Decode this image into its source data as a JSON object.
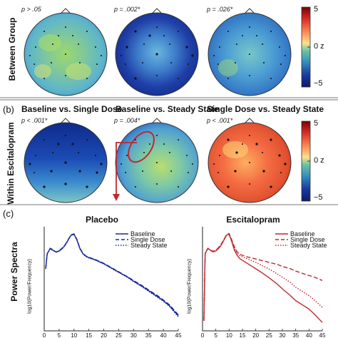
{
  "panels": {
    "a": {
      "row_label": "Between Group",
      "maps": [
        {
          "p": "p > .05",
          "title": ""
        },
        {
          "p": "p = .002*",
          "title": ""
        },
        {
          "p": "p = .026*",
          "title": ""
        }
      ]
    },
    "b": {
      "letter": "(b)",
      "row_label": "Within Escitalopram",
      "maps": [
        {
          "p": "p < .001*",
          "title": "Baseline vs. Single Dose"
        },
        {
          "p": "p = .004*",
          "title": "Baseline vs. Steady State"
        },
        {
          "p": "p < .001*",
          "title": "Single Dose vs. Steady State"
        }
      ]
    },
    "c": {
      "letter": "(c)",
      "row_label": "Power Spectra"
    }
  },
  "colorbar": {
    "ticks": [
      "5",
      "0 z",
      "−5"
    ],
    "colors": [
      "#7a0000",
      "#d73027",
      "#fc8d59",
      "#fee08b",
      "#66c2a5",
      "#3288bd",
      "#1a3a9c",
      "#0a1a6e"
    ]
  },
  "chart_data": [
    {
      "type": "line",
      "title": "Placebo",
      "xlabel": "",
      "ylabel": "log10(Power/Frequency)",
      "x_ticks": [
        "0",
        "5",
        "10",
        "15",
        "20",
        "25",
        "30",
        "35",
        "40",
        "45"
      ],
      "xlim": [
        0,
        45
      ],
      "ylim": [
        -2.2,
        0.9
      ],
      "x": [
        0.5,
        1,
        2,
        3,
        4,
        5,
        6,
        7,
        8,
        9,
        10,
        11,
        12,
        13,
        14,
        15,
        17,
        20,
        22,
        25,
        28,
        30,
        33,
        35,
        38,
        40,
        42,
        45
      ],
      "series": [
        {
          "name": "Baseline",
          "style": "solid",
          "color": "#1a2a9c",
          "values": [
            -0.35,
            0.1,
            0.25,
            0.2,
            0.15,
            0.18,
            0.25,
            0.35,
            0.5,
            0.65,
            0.68,
            0.5,
            0.25,
            0.1,
            0.02,
            -0.02,
            -0.08,
            -0.2,
            -0.3,
            -0.45,
            -0.6,
            -0.72,
            -0.88,
            -1.0,
            -1.18,
            -1.3,
            -1.45,
            -1.75
          ]
        },
        {
          "name": "Single Dose",
          "style": "dashed",
          "color": "#1a2a9c",
          "values": [
            -0.34,
            0.1,
            0.26,
            0.21,
            0.15,
            0.19,
            0.26,
            0.36,
            0.51,
            0.66,
            0.69,
            0.52,
            0.26,
            0.11,
            0.03,
            -0.01,
            -0.07,
            -0.19,
            -0.29,
            -0.44,
            -0.59,
            -0.7,
            -0.86,
            -0.98,
            -1.15,
            -1.28,
            -1.42,
            -1.72
          ]
        },
        {
          "name": "Steady State",
          "style": "dotted",
          "color": "#1a2a9c",
          "values": [
            -0.36,
            0.09,
            0.24,
            0.19,
            0.14,
            0.17,
            0.24,
            0.34,
            0.49,
            0.64,
            0.67,
            0.49,
            0.24,
            0.09,
            0.01,
            -0.03,
            -0.09,
            -0.21,
            -0.31,
            -0.46,
            -0.61,
            -0.73,
            -0.9,
            -1.02,
            -1.2,
            -1.32,
            -1.47,
            -1.78
          ]
        }
      ]
    },
    {
      "type": "line",
      "title": "Escitalopram",
      "xlabel": "",
      "ylabel": "log10(Power/Frequency)",
      "x_ticks": [
        "0",
        "5",
        "10",
        "15",
        "20",
        "25",
        "30",
        "35",
        "40",
        "45"
      ],
      "xlim": [
        0,
        45
      ],
      "ylim": [
        -2.2,
        0.9
      ],
      "x": [
        0.5,
        1,
        2,
        3,
        4,
        5,
        6,
        7,
        8,
        9,
        10,
        11,
        12,
        13,
        14,
        15,
        17,
        20,
        22,
        25,
        28,
        30,
        33,
        35,
        38,
        40,
        42,
        45
      ],
      "series": [
        {
          "name": "Baseline",
          "style": "solid",
          "color": "#c0282d",
          "values": [
            -1.9,
            0.1,
            0.25,
            0.2,
            0.15,
            0.18,
            0.25,
            0.35,
            0.5,
            0.65,
            0.68,
            0.45,
            0.2,
            0.05,
            -0.05,
            -0.1,
            -0.2,
            -0.35,
            -0.45,
            -0.62,
            -0.8,
            -0.95,
            -1.15,
            -1.3,
            -1.45,
            -1.55,
            -1.7,
            -1.95
          ]
        },
        {
          "name": "Single Dose",
          "style": "dashed",
          "color": "#c0282d",
          "values": [
            -1.9,
            0.12,
            0.26,
            0.21,
            0.17,
            0.2,
            0.28,
            0.38,
            0.52,
            0.66,
            0.7,
            0.5,
            0.3,
            0.15,
            0.08,
            0.05,
            0.0,
            -0.06,
            -0.1,
            -0.16,
            -0.22,
            -0.28,
            -0.35,
            -0.42,
            -0.5,
            -0.55,
            -0.6,
            -0.7
          ]
        },
        {
          "name": "Steady State",
          "style": "dotted",
          "color": "#c0282d",
          "values": [
            -1.9,
            0.11,
            0.25,
            0.2,
            0.16,
            0.19,
            0.26,
            0.36,
            0.5,
            0.64,
            0.68,
            0.48,
            0.25,
            0.12,
            0.04,
            0.0,
            -0.06,
            -0.16,
            -0.24,
            -0.36,
            -0.5,
            -0.6,
            -0.76,
            -0.9,
            -1.05,
            -1.15,
            -1.28,
            -1.5
          ]
        }
      ]
    }
  ]
}
